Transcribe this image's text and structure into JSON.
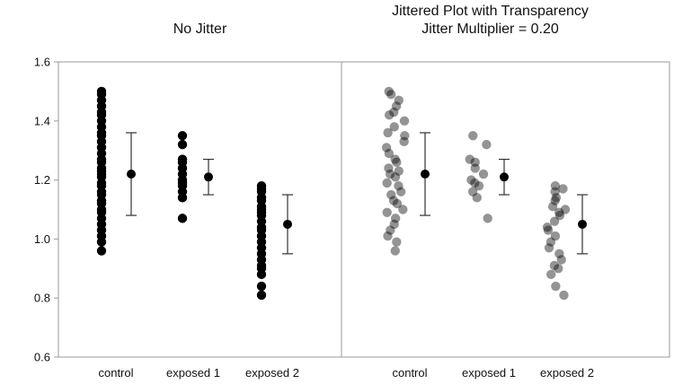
{
  "chart_data": {
    "type": "scatter",
    "ylim": [
      0.6,
      1.6
    ],
    "yticks": [
      "0.6",
      "0.8",
      "1.0",
      "1.2",
      "1.4",
      "1.6"
    ],
    "categories": [
      "control",
      "exposed 1",
      "exposed 2"
    ],
    "grid": false,
    "panels": [
      {
        "title_lines": [
          "No Jitter"
        ],
        "jitter": 0,
        "transparent": false,
        "groups": [
          {
            "name": "control",
            "points": [
              0.96,
              0.99,
              1.01,
              1.03,
              1.05,
              1.07,
              1.09,
              1.1,
              1.12,
              1.13,
              1.15,
              1.16,
              1.18,
              1.19,
              1.21,
              1.22,
              1.23,
              1.24,
              1.26,
              1.27,
              1.29,
              1.31,
              1.33,
              1.35,
              1.36,
              1.38,
              1.4,
              1.42,
              1.43,
              1.45,
              1.47,
              1.49,
              1.5
            ]
          },
          {
            "name": "exposed 1",
            "points": [
              1.07,
              1.14,
              1.16,
              1.18,
              1.19,
              1.2,
              1.22,
              1.24,
              1.26,
              1.27,
              1.32,
              1.35
            ]
          },
          {
            "name": "exposed 2",
            "points": [
              0.81,
              0.84,
              0.88,
              0.9,
              0.91,
              0.93,
              0.95,
              0.97,
              0.99,
              1.01,
              1.03,
              1.04,
              1.06,
              1.08,
              1.09,
              1.1,
              1.11,
              1.13,
              1.14,
              1.16,
              1.17,
              1.18
            ]
          }
        ],
        "summary": [
          {
            "name": "control",
            "mean": 1.22,
            "lower": 1.08,
            "upper": 1.36
          },
          {
            "name": "exposed 1",
            "mean": 1.21,
            "lower": 1.15,
            "upper": 1.27
          },
          {
            "name": "exposed 2",
            "mean": 1.05,
            "lower": 0.95,
            "upper": 1.15
          }
        ]
      },
      {
        "title_lines": [
          "Jittered Plot with Transparency",
          "Jitter Multiplier = 0.20"
        ],
        "jitter": 0.2,
        "transparent": true,
        "groups": [
          {
            "name": "control",
            "points": [
              0.96,
              0.99,
              1.01,
              1.03,
              1.05,
              1.07,
              1.09,
              1.1,
              1.12,
              1.13,
              1.15,
              1.16,
              1.18,
              1.19,
              1.21,
              1.22,
              1.23,
              1.24,
              1.26,
              1.27,
              1.29,
              1.31,
              1.33,
              1.35,
              1.36,
              1.38,
              1.4,
              1.42,
              1.43,
              1.45,
              1.47,
              1.49,
              1.5
            ]
          },
          {
            "name": "exposed 1",
            "points": [
              1.07,
              1.14,
              1.16,
              1.18,
              1.19,
              1.2,
              1.22,
              1.24,
              1.26,
              1.27,
              1.32,
              1.35
            ]
          },
          {
            "name": "exposed 2",
            "points": [
              0.81,
              0.84,
              0.88,
              0.9,
              0.91,
              0.93,
              0.95,
              0.97,
              0.99,
              1.01,
              1.03,
              1.04,
              1.06,
              1.08,
              1.09,
              1.1,
              1.11,
              1.13,
              1.14,
              1.16,
              1.17,
              1.18
            ]
          }
        ],
        "summary": [
          {
            "name": "control",
            "mean": 1.22,
            "lower": 1.08,
            "upper": 1.36
          },
          {
            "name": "exposed 1",
            "mean": 1.21,
            "lower": 1.15,
            "upper": 1.27
          },
          {
            "name": "exposed 2",
            "mean": 1.05,
            "lower": 0.95,
            "upper": 1.15
          }
        ]
      }
    ]
  },
  "colors": {
    "point": "#000000",
    "point_transparent_alpha": 0.42,
    "axis": "#9a9a9a",
    "errorbar": "#333333"
  }
}
